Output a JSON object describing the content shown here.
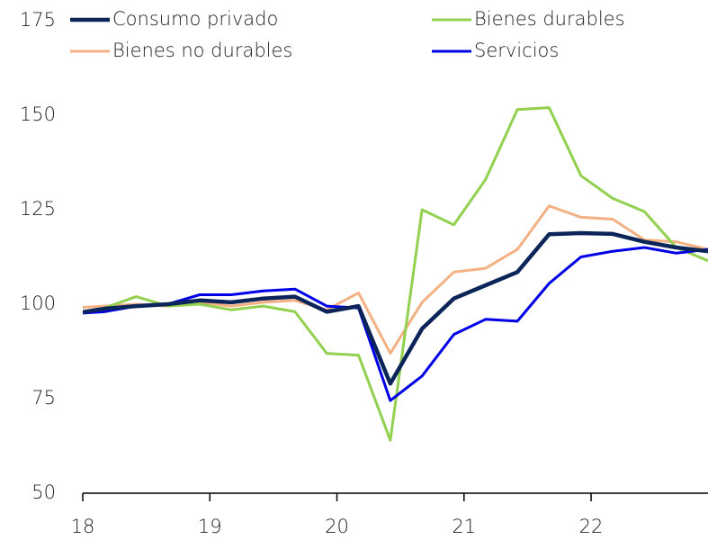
{
  "chart_data": {
    "type": "line",
    "x": [
      17.92,
      18.17,
      18.42,
      18.67,
      18.92,
      19.17,
      19.42,
      19.67,
      19.92,
      20.17,
      20.42,
      20.67,
      20.92,
      21.17,
      21.42,
      21.67,
      21.92,
      22.17,
      22.42,
      22.67,
      22.92
    ],
    "series": [
      {
        "name": "Consumo privado",
        "color": "#0c2559",
        "values": [
          97.5,
          98.8,
          99.5,
          100,
          101,
          100.5,
          101.5,
          102,
          98,
          99.5,
          79,
          93.5,
          101.5,
          105,
          108.5,
          118.5,
          118.8,
          118.6,
          116.5,
          115,
          114
        ]
      },
      {
        "name": "Bienes durables",
        "color": "#92d050",
        "values": [
          97.5,
          99,
          102,
          99.5,
          100,
          98.5,
          99.5,
          98,
          87,
          86.5,
          64,
          125,
          121,
          133,
          151.5,
          152,
          134,
          128,
          124.5,
          115,
          111.5
        ]
      },
      {
        "name": "Bienes no durables",
        "color": "#f4b183",
        "values": [
          99,
          99.5,
          100,
          99.5,
          100.5,
          99.5,
          100.5,
          101,
          98.5,
          103,
          87,
          100.5,
          108.5,
          109.5,
          114.5,
          126,
          123,
          122.5,
          117,
          116.5,
          114.5
        ]
      },
      {
        "name": "Servicios",
        "color": "#0000e6",
        "values": [
          97.5,
          98,
          99.5,
          100,
          102.5,
          102.5,
          103.5,
          104,
          99.5,
          99,
          74.5,
          81,
          92,
          96,
          95.5,
          105.5,
          112.5,
          114,
          115,
          113.5,
          114.5
        ]
      }
    ],
    "xlim": [
      18,
      22.92
    ],
    "xticks": [
      18,
      19,
      20,
      21,
      22
    ],
    "ylim": [
      50,
      175
    ],
    "yticks": [
      50,
      75,
      100,
      125,
      150,
      175
    ]
  }
}
